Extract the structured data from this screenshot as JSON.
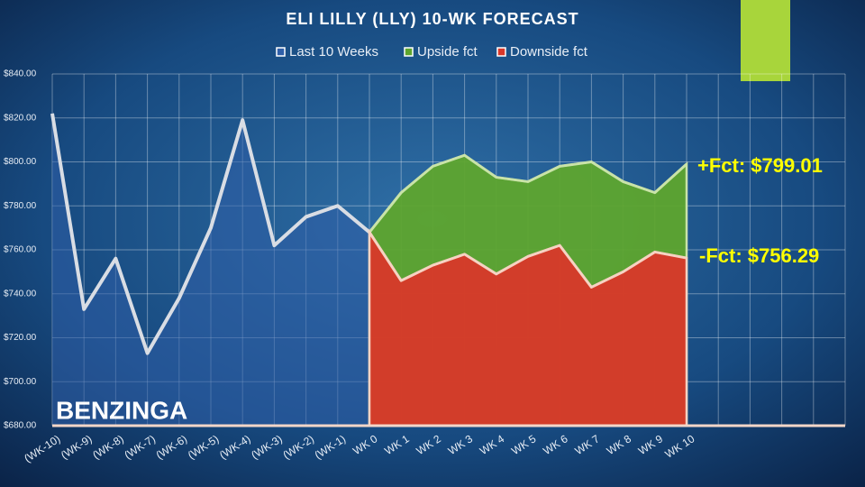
{
  "chart_data": {
    "type": "area",
    "title": "ELI LILLY (LLY) 10-WK FORECAST",
    "logo": "BENZINGA",
    "categories": [
      "(WK-10)",
      "(WK-9)",
      "(WK-8)",
      "(WK-7)",
      "(WK-6)",
      "(WK-5)",
      "(WK-4)",
      "(WK-3)",
      "(WK-2)",
      "(WK-1)",
      "WK 0",
      "WK 1",
      "WK 2",
      "WK 3",
      "WK 4",
      "WK 5",
      "WK 6",
      "WK 7",
      "WK 8",
      "WK 9",
      "WK 10",
      null,
      null,
      null,
      null,
      null
    ],
    "series": [
      {
        "name": "Last 10 Weeks",
        "color": "#2f5fa8",
        "line_color": "#d9dde4",
        "values": [
          822,
          733,
          756,
          713,
          738,
          770,
          819,
          762,
          775,
          780,
          768,
          null,
          null,
          null,
          null,
          null,
          null,
          null,
          null,
          null,
          null,
          null,
          null,
          null,
          null,
          null
        ]
      },
      {
        "name": "Upside fct",
        "color": "#5ea52e",
        "line_color": "#c9e3a8",
        "values": [
          null,
          null,
          null,
          null,
          null,
          null,
          null,
          null,
          null,
          null,
          768,
          786,
          798,
          803,
          793,
          791,
          798,
          800,
          791,
          786,
          799.01,
          null,
          null,
          null,
          null,
          null
        ]
      },
      {
        "name": "Downside fct",
        "color": "#d9382a",
        "line_color": "#f6d2c2",
        "values": [
          null,
          null,
          null,
          null,
          null,
          null,
          null,
          null,
          null,
          null,
          768,
          746,
          753,
          758,
          749,
          757,
          762,
          743,
          750,
          759,
          756.29,
          null,
          null,
          null,
          null,
          null
        ]
      }
    ],
    "ylim": [
      680,
      840
    ],
    "yticks": [
      {
        "value": 680,
        "label": "$680.00"
      },
      {
        "value": 700,
        "label": "$700.00"
      },
      {
        "value": 720,
        "label": "$720.00"
      },
      {
        "value": 740,
        "label": "$740.00"
      },
      {
        "value": 760,
        "label": "$760.00"
      },
      {
        "value": 780,
        "label": "$780.00"
      },
      {
        "value": 800,
        "label": "$800.00"
      },
      {
        "value": 820,
        "label": "$820.00"
      },
      {
        "value": 840,
        "label": "$840.00"
      }
    ],
    "grid": true,
    "annotations": [
      "+Fct: $799.01",
      "-Fct: $756.29"
    ]
  }
}
